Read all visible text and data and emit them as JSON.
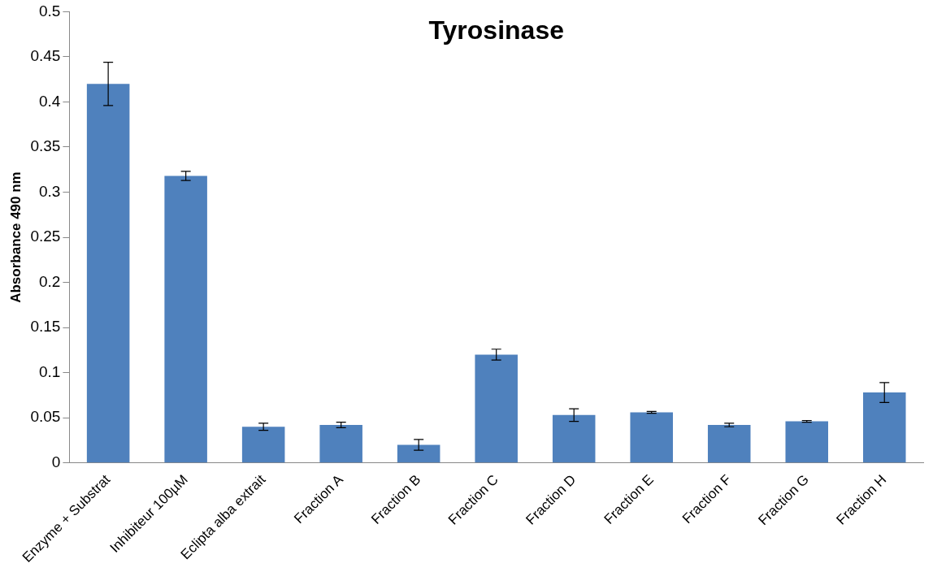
{
  "chart_data": {
    "type": "bar",
    "title": "Tyrosinase",
    "ylabel": "Absorbance 490 nm",
    "categories": [
      "Enzyme + Substrat",
      "Inhibiteur 100µM",
      "Eclipta alba extrait",
      "Fraction A",
      "Fraction B",
      "Fraction C",
      "Fraction D",
      "Fraction E",
      "Fraction F",
      "Fraction G",
      "Fraction H"
    ],
    "values": [
      0.42,
      0.318,
      0.04,
      0.042,
      0.02,
      0.12,
      0.053,
      0.056,
      0.042,
      0.046,
      0.078
    ],
    "errors": [
      0.024,
      0.005,
      0.004,
      0.003,
      0.006,
      0.006,
      0.007,
      0.001,
      0.002,
      0.001,
      0.011
    ],
    "color": "#4f81bd",
    "ylim": [
      0,
      0.5
    ],
    "yticks": [
      0,
      0.05,
      0.1,
      0.15,
      0.2,
      0.25,
      0.3,
      0.35,
      0.4,
      0.45,
      0.5
    ],
    "grid": false,
    "legend": false
  }
}
